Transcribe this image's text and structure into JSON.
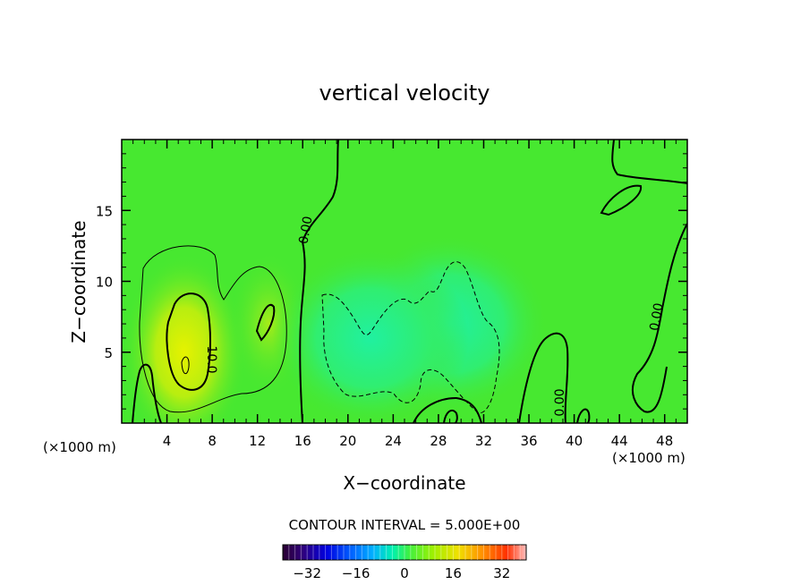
{
  "chart_data": {
    "type": "heatmap",
    "title": "vertical velocity",
    "xlabel": "X−coordinate",
    "ylabel": "Z−coordinate",
    "x_unit_left": "(×1000 m)",
    "x_unit_right": "(×1000 m)",
    "xlim": [
      0,
      50
    ],
    "ylim": [
      0,
      20
    ],
    "xticks": [
      "4",
      "8",
      "12",
      "16",
      "20",
      "24",
      "28",
      "32",
      "36",
      "40",
      "44",
      "48"
    ],
    "yticks": [
      "5",
      "10",
      "15"
    ],
    "contour_labels": [
      "0.00",
      "10.0",
      "0.00",
      "0.00"
    ],
    "contour_interval_text": "CONTOUR INTERVAL = 5.000E+00",
    "colorbar": {
      "range": [
        -40,
        40
      ],
      "ticks": [
        "−32",
        "−16",
        "0",
        "16",
        "32"
      ]
    },
    "field_peaks": [
      {
        "x": 5.5,
        "z": 5.0,
        "value": 12
      },
      {
        "x": 13.0,
        "z": 7.0,
        "value": 6
      },
      {
        "x": 29.0,
        "z": 7.0,
        "value": -4
      },
      {
        "x": 22.0,
        "z": 6.0,
        "value": -3
      }
    ]
  }
}
